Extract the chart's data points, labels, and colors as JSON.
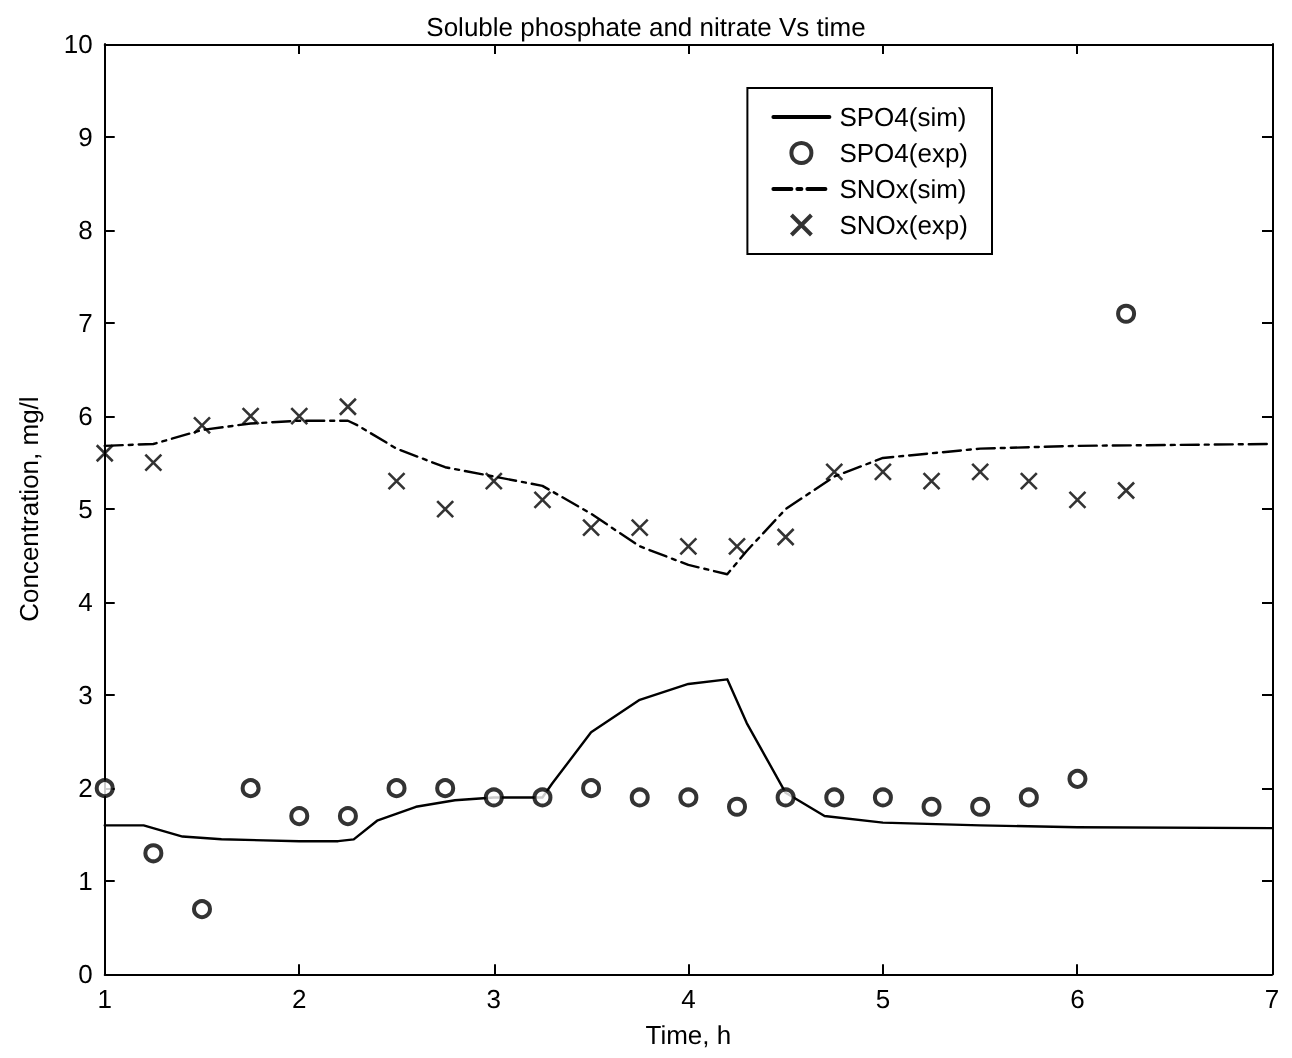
{
  "chart_data": {
    "type": "line",
    "title": "Soluble phosphate and nitrate Vs time",
    "xlabel": "Time, h",
    "ylabel": "Concentration, mg/l",
    "xlim": [
      1,
      7
    ],
    "xticks": [
      1,
      2,
      3,
      4,
      5,
      6,
      7
    ],
    "ylim": [
      0,
      10
    ],
    "yticks": [
      0,
      1,
      2,
      3,
      4,
      5,
      6,
      7,
      8,
      9,
      10
    ],
    "grid": false,
    "legend": "top right",
    "series": [
      {
        "name": "SPO4(sim)",
        "type": "line",
        "color": "#000000",
        "marker": "none",
        "line_style": "solid",
        "x": [
          1,
          1.2,
          1.4,
          1.6,
          2.0,
          2.2,
          2.28,
          2.4,
          2.6,
          2.8,
          3.0,
          3.25,
          3.3,
          3.5,
          3.75,
          4.0,
          4.2,
          4.3,
          4.5,
          4.7,
          5.0,
          5.5,
          6,
          7
        ],
        "values": [
          1.6,
          1.6,
          1.48,
          1.45,
          1.43,
          1.43,
          1.45,
          1.65,
          1.8,
          1.87,
          1.9,
          1.9,
          2.05,
          2.6,
          2.95,
          3.12,
          3.17,
          2.7,
          1.95,
          1.7,
          1.63,
          1.6,
          1.58,
          1.57
        ]
      },
      {
        "name": "SPO4(exp)",
        "type": "scatter",
        "color": "#000000",
        "marker": "circle",
        "x": [
          1,
          1.25,
          1.5,
          1.75,
          2,
          2.25,
          2.5,
          2.75,
          3,
          3.25,
          3.5,
          3.75,
          4,
          4.25,
          4.5,
          4.75,
          5,
          5.25,
          5.5,
          5.75,
          6,
          6.25
        ],
        "values": [
          2.0,
          1.3,
          0.7,
          2.0,
          1.7,
          1.7,
          2.0,
          2.0,
          1.9,
          1.9,
          2.0,
          1.9,
          1.9,
          1.8,
          1.9,
          1.9,
          1.9,
          1.8,
          1.8,
          1.9,
          2.1,
          7.1
        ]
      },
      {
        "name": "SNOx(sim)",
        "type": "line",
        "color": "#000000",
        "marker": "none",
        "line_style": "dashed",
        "x": [
          1,
          1.25,
          1.5,
          1.75,
          2.0,
          2.25,
          2.3,
          2.5,
          2.75,
          3.0,
          3.25,
          3.5,
          3.75,
          4.0,
          4.2,
          4.3,
          4.5,
          4.75,
          5.0,
          5.5,
          6,
          7
        ],
        "values": [
          5.68,
          5.7,
          5.85,
          5.92,
          5.95,
          5.95,
          5.9,
          5.65,
          5.45,
          5.35,
          5.25,
          4.95,
          4.6,
          4.4,
          4.3,
          4.55,
          5.0,
          5.35,
          5.55,
          5.65,
          5.68,
          5.7
        ]
      },
      {
        "name": "SNOx(exp)",
        "type": "scatter",
        "color": "#000000",
        "marker": "cross",
        "x": [
          1,
          1.25,
          1.5,
          1.75,
          2,
          2.25,
          2.5,
          2.75,
          3,
          3.25,
          3.5,
          3.75,
          4,
          4.25,
          4.5,
          4.75,
          5,
          5.25,
          5.5,
          5.75,
          6,
          6.25
        ],
        "values": [
          5.6,
          5.5,
          5.9,
          6.0,
          6.0,
          6.1,
          5.3,
          5.0,
          5.3,
          5.1,
          4.8,
          4.8,
          4.6,
          4.6,
          4.7,
          5.4,
          5.4,
          5.3,
          5.4,
          5.3,
          5.1,
          5.2
        ]
      }
    ]
  }
}
